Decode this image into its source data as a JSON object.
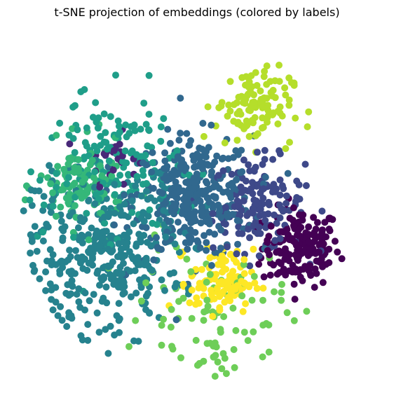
{
  "chart_data": {
    "type": "scatter",
    "title": "t-SNE projection of embeddings (colored by labels)",
    "xlabel": "",
    "ylabel": "",
    "axes_visible": false,
    "grid": false,
    "legend": "none",
    "xlim": [
      -100,
      100
    ],
    "ylim": [
      -100,
      100
    ],
    "colormap": "viridis",
    "marker_size_note": "uniform circular markers",
    "clusters": [
      {
        "label": 0,
        "color": "#440154",
        "center": [
          59,
          -19
        ],
        "spread": 11,
        "count": 170
      },
      {
        "label": 1,
        "color": "#482878",
        "center": [
          -48,
          31
        ],
        "spread": 7,
        "count": 25
      },
      {
        "label": 2,
        "color": "#3e4989",
        "center": [
          35,
          5
        ],
        "spread": 13,
        "count": 150
      },
      {
        "label": 3,
        "color": "#31688e",
        "center": [
          -2,
          9
        ],
        "spread": 17,
        "count": 340
      },
      {
        "label": 4,
        "color": "#26828e",
        "center": [
          -52,
          -22
        ],
        "spread": 22,
        "count": 380
      },
      {
        "label": 5,
        "color": "#1f9e89",
        "center": [
          -49,
          28
        ],
        "spread": 19,
        "count": 160
      },
      {
        "label": 6,
        "color": "#35b779",
        "center": [
          -66,
          15
        ],
        "spread": 12,
        "count": 110
      },
      {
        "label": 7,
        "color": "#6ece58",
        "center": [
          10,
          -56
        ],
        "spread": 20,
        "count": 90
      },
      {
        "label": 8,
        "color": "#b5de2b",
        "center": [
          32,
          60
        ],
        "spread": 11,
        "count": 110
      },
      {
        "label": 9,
        "color": "#fde725",
        "center": [
          14,
          -38
        ],
        "spread": 9,
        "count": 110
      }
    ]
  }
}
